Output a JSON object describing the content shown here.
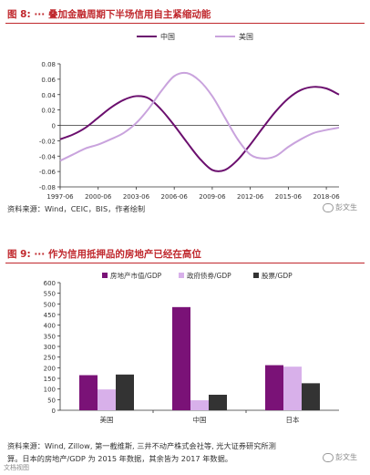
{
  "figure8": {
    "title": "图 8: ··· 叠加金融周期下半场信用自主紧缩动能",
    "source": "资料来源：Wind，CEIC，BIS，作者绘制"
  },
  "figure9": {
    "title": "图 9: ··· 作为信用抵押品的房地产已经在高位",
    "source_line1": "资料来源：Wind, Zillow, 第一截维斯, 三井不动产株式会社等, 光大证券研究所测",
    "source_line2": "算。日本的房地产/GDP 为 2015 年数据，其余皆为 2017 年数据。"
  },
  "watermark": "彭文生",
  "bottom_watermark": "文档视图",
  "colors": {
    "china": "#6b0f6e",
    "us": "#c9a3dd",
    "bar1": "#7a1277",
    "bar2": "#d8b0ea",
    "bar3": "#333333"
  },
  "chart_data": [
    {
      "type": "line",
      "x": [
        "1997-06",
        "1998-06",
        "1999-06",
        "2000-06",
        "2001-06",
        "2002-06",
        "2003-06",
        "2004-06",
        "2005-06",
        "2006-06",
        "2007-06",
        "2008-06",
        "2009-06",
        "2010-06",
        "2011-06",
        "2012-06",
        "2013-06",
        "2014-06",
        "2015-06",
        "2016-06",
        "2017-06",
        "2018-06",
        "2019-06"
      ],
      "x_tick_labels": [
        "1997-06",
        "2000-06",
        "2003-06",
        "2006-06",
        "2009-06",
        "2012-06",
        "2015-06",
        "2018-06"
      ],
      "series": [
        {
          "name": "中国",
          "values": [
            -0.018,
            -0.012,
            -0.003,
            0.01,
            0.023,
            0.033,
            0.038,
            0.035,
            0.02,
            0.0,
            -0.022,
            -0.043,
            -0.058,
            -0.058,
            -0.045,
            -0.025,
            -0.003,
            0.018,
            0.035,
            0.046,
            0.05,
            0.048,
            0.04
          ]
        },
        {
          "name": "美国",
          "values": [
            -0.046,
            -0.038,
            -0.03,
            -0.025,
            -0.018,
            -0.01,
            0.003,
            0.022,
            0.045,
            0.064,
            0.068,
            0.058,
            0.038,
            0.01,
            -0.018,
            -0.038,
            -0.043,
            -0.04,
            -0.028,
            -0.018,
            -0.01,
            -0.006,
            -0.003
          ]
        }
      ],
      "ylim": [
        -0.08,
        0.08
      ],
      "y_ticks": [
        0.08,
        0.06,
        0.04,
        0.02,
        0,
        -0.02,
        -0.04,
        -0.06,
        -0.08
      ],
      "y_tick_labels": [
        "0.08",
        "0.06",
        "0.04",
        "0.02",
        "0",
        "-0.02",
        "-0.04",
        "-0.06",
        "-0.08"
      ],
      "grid": false,
      "legend_position": "top-center"
    },
    {
      "type": "bar",
      "categories": [
        "美国",
        "中国",
        "日本"
      ],
      "series": [
        {
          "name": "房地产市值/GDP",
          "values": [
            165,
            485,
            212
          ]
        },
        {
          "name": "政府债券/GDP",
          "values": [
            98,
            47,
            205
          ]
        },
        {
          "name": "股票/GDP",
          "values": [
            168,
            73,
            127
          ]
        }
      ],
      "ylim": [
        0,
        600
      ],
      "y_ticks": [
        0,
        50,
        100,
        150,
        200,
        250,
        300,
        350,
        400,
        450,
        500,
        550,
        600
      ],
      "y_tick_labels": [
        "0",
        "50",
        "100",
        "150",
        "200",
        "250",
        "300",
        "350",
        "400",
        "450",
        "500",
        "550",
        "600"
      ],
      "grid": false,
      "legend_position": "top"
    }
  ]
}
